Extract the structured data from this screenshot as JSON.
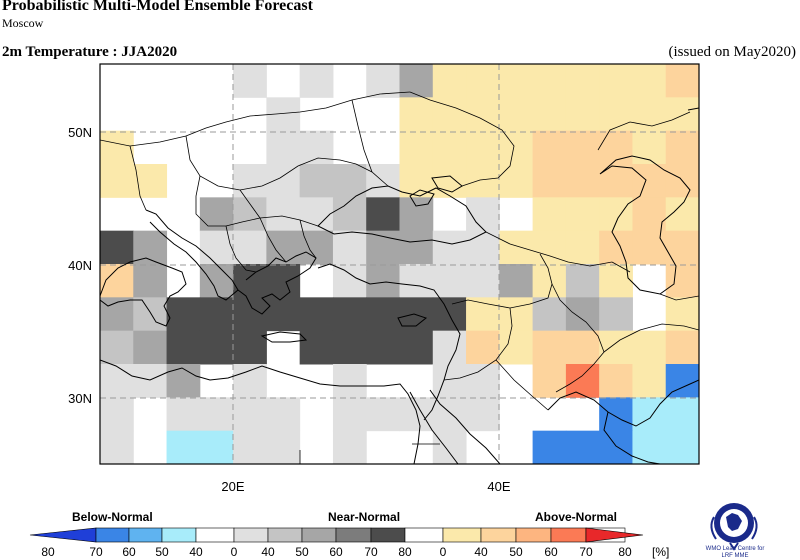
{
  "header": {
    "title": "Probabilistic Multi-Model Ensemble Forecast",
    "subtitle": "Moscow",
    "variable": "2m Temperature : JJA2020",
    "issued": "(issued on May2020)"
  },
  "map": {
    "lon_range": [
      10,
      55
    ],
    "lat_range": [
      25,
      55
    ],
    "lat_labels": [
      "50N",
      "40N",
      "30N"
    ],
    "lon_labels": [
      "20E",
      "40E"
    ],
    "grid": "dashed at 10 degree"
  },
  "legend": {
    "categories": [
      "Below-Normal",
      "Near-Normal",
      "Above-Normal"
    ],
    "tick_labels": [
      "80",
      "70",
      "60",
      "50",
      "40",
      "0",
      "40",
      "50",
      "60",
      "70",
      "80",
      "0",
      "40",
      "50",
      "60",
      "70",
      "80"
    ],
    "unit": "[%]",
    "colors": {
      "below": [
        "#1f3fd8",
        "#3a85e6",
        "#5fb3f0",
        "#a8ecfa"
      ],
      "near": [
        "#e0e0e0",
        "#c4c4c4",
        "#a6a6a6",
        "#7c7c7c",
        "#4c4c4c"
      ],
      "above": [
        "#fbe9ab",
        "#fdd49d",
        "#fdb580",
        "#fb7a55",
        "#e8282a"
      ]
    }
  },
  "logo": {
    "text_line1": "WMO Lead Centre for",
    "text_line2": "LRF MME"
  }
}
